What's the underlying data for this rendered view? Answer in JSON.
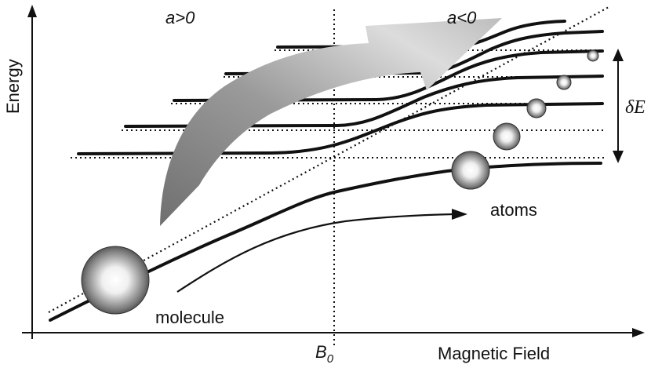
{
  "axes": {
    "y_label": "Energy",
    "x_label": "Magnetic Field",
    "resonance_label": "B",
    "resonance_subscript": "0"
  },
  "regions": {
    "left": "a>0",
    "right": "a<0"
  },
  "labels": {
    "atoms": "atoms",
    "molecule": "molecule",
    "spacing_symbol": "δE"
  },
  "colors": {
    "ink": "#111111",
    "arrow_fill_dark": "#6f6f6f",
    "arrow_fill_light": "#e6e6e6"
  }
}
